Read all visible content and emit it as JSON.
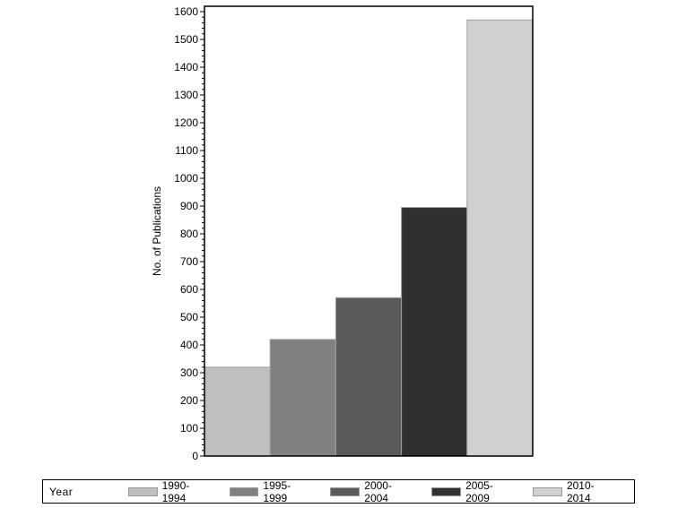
{
  "chart_data": {
    "type": "bar",
    "title": "",
    "xlabel": "",
    "ylabel": "No. of Publications",
    "ylim": [
      0,
      1600
    ],
    "yticks": [
      0,
      100,
      200,
      300,
      400,
      500,
      600,
      700,
      800,
      900,
      1000,
      1100,
      1200,
      1300,
      1400,
      1500,
      1600
    ],
    "minor_ticks_per_interval": 4,
    "grid": false,
    "legend_position": "bottom",
    "legend_title": "Year",
    "categories": [
      "1990-1994",
      "1995-1999",
      "2000-2004",
      "2005-2009",
      "2010-2014"
    ],
    "values": [
      320,
      420,
      570,
      895,
      1570
    ],
    "colors": [
      "#bfbfbf",
      "#808080",
      "#5a5a5a",
      "#303030",
      "#d0d0d0"
    ]
  },
  "legend": {
    "title": "Year",
    "items": [
      {
        "label": "1990-1994",
        "color": "#bfbfbf"
      },
      {
        "label": "1995-1999",
        "color": "#808080"
      },
      {
        "label": "2000-2004",
        "color": "#5a5a5a"
      },
      {
        "label": "2005-2009",
        "color": "#303030"
      },
      {
        "label": "2010-2014",
        "color": "#d0d0d0"
      }
    ]
  }
}
